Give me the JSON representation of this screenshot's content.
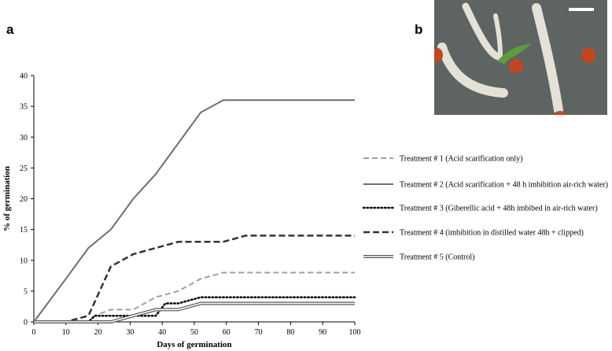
{
  "panels": {
    "a": "a",
    "b": "b"
  },
  "photo": {
    "background": "#5d6462",
    "root_color": "#e4e1d6",
    "seed_color": "#c2471f",
    "leaf_color": "#5f9a3c",
    "scale_bar_color": "#ffffff"
  },
  "chart_data": {
    "type": "line",
    "xlabel": "Days of germination",
    "ylabel": "% of germination",
    "xlim": [
      0,
      100
    ],
    "ylim": [
      0,
      40
    ],
    "xticks": [
      0,
      10,
      20,
      30,
      40,
      50,
      60,
      70,
      80,
      90,
      100
    ],
    "yticks": [
      0,
      5,
      10,
      15,
      20,
      25,
      30,
      35,
      40
    ],
    "grid": false,
    "legend_position": "right",
    "series": [
      {
        "name": "Treatment # 1 (Acid scarification only)",
        "style": "dashed",
        "color": "#a0a0a0",
        "points": [
          [
            0,
            0
          ],
          [
            10,
            0
          ],
          [
            17,
            0
          ],
          [
            19,
            1
          ],
          [
            24,
            2
          ],
          [
            31,
            2
          ],
          [
            38,
            4
          ],
          [
            45,
            5
          ],
          [
            52,
            7
          ],
          [
            59,
            8
          ],
          [
            100,
            8
          ]
        ]
      },
      {
        "name": "Treatment # 2 (Acid scarification + 48 h imbibition air-rich water)",
        "style": "solid",
        "color": "#6e6e6e",
        "points": [
          [
            0,
            0
          ],
          [
            10,
            7
          ],
          [
            17,
            12
          ],
          [
            24,
            15
          ],
          [
            31,
            20
          ],
          [
            38,
            24
          ],
          [
            45,
            29
          ],
          [
            52,
            34
          ],
          [
            59,
            36
          ],
          [
            100,
            36
          ]
        ]
      },
      {
        "name": "Treatment # 3 (Giberellic acid + 48h imbibed in air-rich water)",
        "style": "dotted",
        "color": "#000000",
        "points": [
          [
            0,
            0
          ],
          [
            17,
            0
          ],
          [
            19,
            1
          ],
          [
            24,
            1
          ],
          [
            31,
            1
          ],
          [
            38,
            1
          ],
          [
            41,
            3
          ],
          [
            45,
            3
          ],
          [
            52,
            4
          ],
          [
            59,
            4
          ],
          [
            100,
            4
          ]
        ]
      },
      {
        "name": "Treatment # 4 (imbibition in distilled water 48h + clipped)",
        "style": "dashed-bold",
        "color": "#333333",
        "points": [
          [
            0,
            0
          ],
          [
            10,
            0
          ],
          [
            17,
            1
          ],
          [
            24,
            9
          ],
          [
            31,
            11
          ],
          [
            38,
            12
          ],
          [
            45,
            13
          ],
          [
            52,
            13
          ],
          [
            59,
            13
          ],
          [
            66,
            14
          ],
          [
            100,
            14
          ]
        ]
      },
      {
        "name": "Treatment # 5 (Control)",
        "style": "double",
        "color": "#555555",
        "points": [
          [
            0,
            0
          ],
          [
            24,
            0
          ],
          [
            31,
            1
          ],
          [
            38,
            2
          ],
          [
            45,
            2
          ],
          [
            52,
            3
          ],
          [
            59,
            3
          ],
          [
            100,
            3
          ]
        ]
      }
    ]
  }
}
